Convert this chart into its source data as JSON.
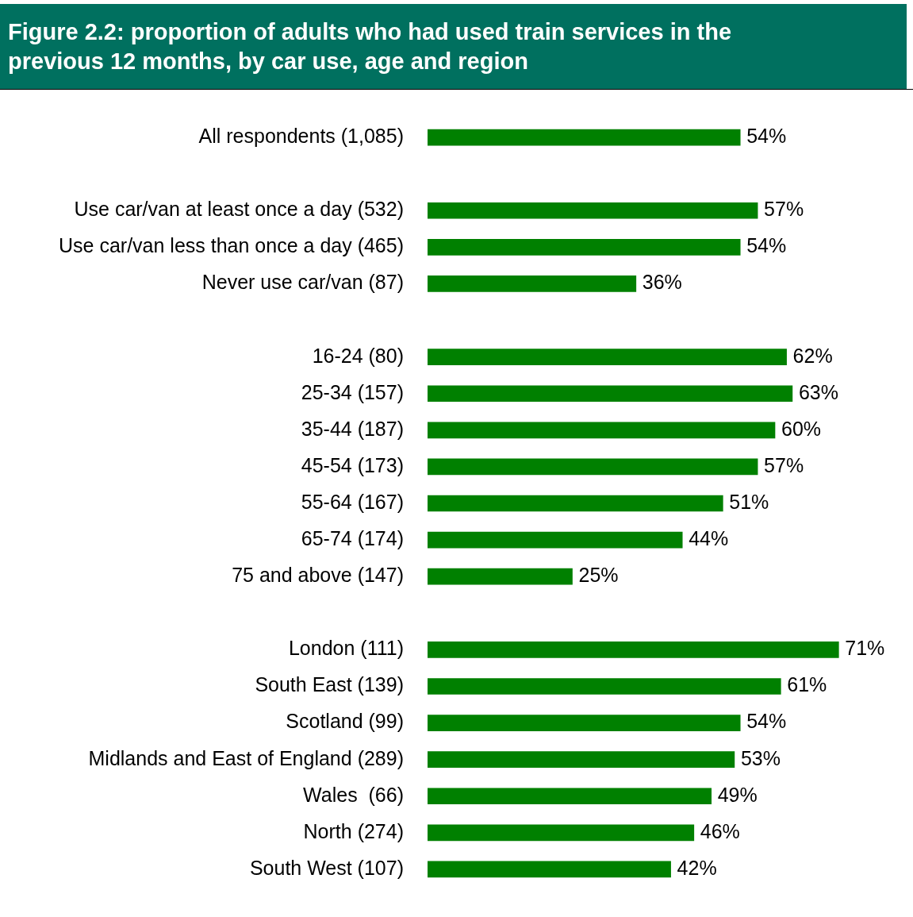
{
  "chart_data": {
    "type": "bar",
    "orientation": "horizontal",
    "title": "Figure 2.2: proportion of adults who had used train services in the previous 12 months, by car use, age and region",
    "categories": [
      "All respondents (1,085)",
      null,
      "Use car/van at least once a day (532)",
      "Use car/van less than once a day (465)",
      "Never use car/van (87)",
      null,
      "16-24 (80)",
      "25-34 (157)",
      "35-44 (187)",
      "45-54 (173)",
      "55-64 (167)",
      "65-74 (174)",
      "75 and above (147)",
      null,
      "London (111)",
      "South East (139)",
      "Scotland (99)",
      "Midlands and East of England (289)",
      "Wales  (66)",
      "North (274)",
      "South West (107)"
    ],
    "values": [
      54,
      null,
      57,
      54,
      36,
      null,
      62,
      63,
      60,
      57,
      51,
      44,
      25,
      null,
      71,
      61,
      54,
      53,
      49,
      46,
      42
    ],
    "color": "#008000",
    "tick_labels": "y",
    "data_labels": true,
    "value_labels": [
      "54%",
      null,
      "57%",
      "54%",
      "36%",
      null,
      "62%",
      "63%",
      "60%",
      "57%",
      "51%",
      "44%",
      "25%",
      null,
      "71%",
      "61%",
      "54%",
      "53%",
      "49%",
      "46%",
      "42%"
    ],
    "legend": false
  }
}
